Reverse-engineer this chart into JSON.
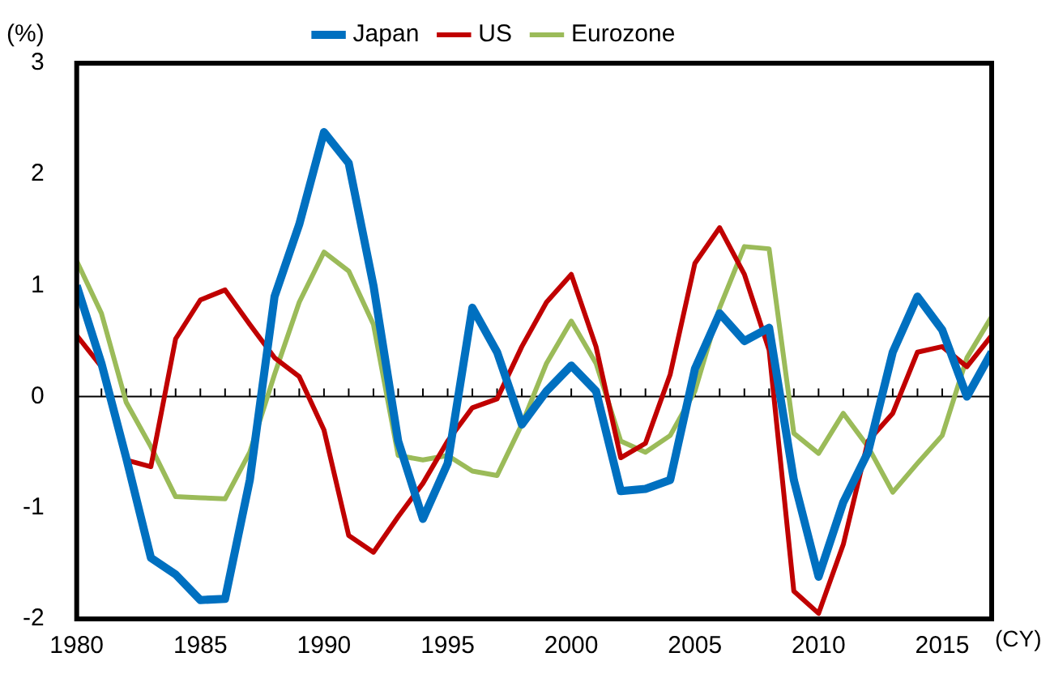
{
  "chart_data": {
    "type": "line",
    "ylabel": "(%)",
    "xlabel": "(CY)",
    "legend": "top",
    "grid": false,
    "marker": "none",
    "line_style": "solid",
    "x": [
      1980,
      1981,
      1982,
      1983,
      1984,
      1985,
      1986,
      1987,
      1988,
      1989,
      1990,
      1991,
      1992,
      1993,
      1994,
      1995,
      1996,
      1997,
      1998,
      1999,
      2000,
      2001,
      2002,
      2003,
      2004,
      2005,
      2006,
      2007,
      2008,
      2009,
      2010,
      2011,
      2012,
      2013,
      2014,
      2015,
      2016,
      2017
    ],
    "series": [
      {
        "name": "Japan",
        "color": "#0070c0",
        "values": [
          1.0,
          0.3,
          -0.55,
          -1.45,
          -1.6,
          -1.83,
          -1.82,
          -0.75,
          0.9,
          1.55,
          2.38,
          2.1,
          1.0,
          -0.4,
          -1.1,
          -0.6,
          0.8,
          0.4,
          -0.25,
          0.05,
          0.28,
          0.05,
          -0.85,
          -0.83,
          -0.75,
          0.25,
          0.75,
          0.5,
          0.62,
          -0.75,
          -1.62,
          -0.95,
          -0.5,
          0.4,
          0.9,
          0.6,
          0.0,
          0.4
        ]
      },
      {
        "name": "US",
        "color": "#c00000",
        "values": [
          0.55,
          0.27,
          -0.57,
          -0.63,
          0.52,
          0.87,
          0.96,
          0.65,
          0.35,
          0.18,
          -0.3,
          -1.25,
          -1.4,
          -1.08,
          -0.78,
          -0.4,
          -0.1,
          -0.02,
          0.45,
          0.85,
          1.1,
          0.45,
          -0.55,
          -0.42,
          0.2,
          1.2,
          1.52,
          1.1,
          0.42,
          -1.75,
          -1.95,
          -1.33,
          -0.4,
          -0.15,
          0.4,
          0.45,
          0.27,
          0.55
        ]
      },
      {
        "name": "Eurozone",
        "color": "#9bbb59",
        "values": [
          1.22,
          0.75,
          -0.05,
          -0.45,
          -0.9,
          -0.91,
          -0.92,
          -0.5,
          0.2,
          0.85,
          1.3,
          1.13,
          0.65,
          -0.53,
          -0.57,
          -0.53,
          -0.67,
          -0.71,
          -0.25,
          0.3,
          0.68,
          0.3,
          -0.4,
          -0.5,
          -0.35,
          0.05,
          0.8,
          1.35,
          1.33,
          -0.33,
          -0.51,
          -0.15,
          -0.45,
          -0.86,
          -0.6,
          -0.35,
          0.35,
          0.72
        ]
      }
    ],
    "xlim": [
      1980,
      2017
    ],
    "xticks": [
      1980,
      {
        "value": 1981,
        "label": null
      },
      {
        "value": 1982,
        "label": null
      },
      {
        "value": 1983,
        "label": null
      },
      {
        "value": 1984,
        "label": null
      },
      1985,
      {
        "value": 1986,
        "label": null
      },
      {
        "value": 1987,
        "label": null
      },
      {
        "value": 1988,
        "label": null
      },
      {
        "value": 1989,
        "label": null
      },
      1990,
      {
        "value": 1991,
        "label": null
      },
      {
        "value": 1992,
        "label": null
      },
      {
        "value": 1993,
        "label": null
      },
      {
        "value": 1994,
        "label": null
      },
      1995,
      {
        "value": 1996,
        "label": null
      },
      {
        "value": 1997,
        "label": null
      },
      {
        "value": 1998,
        "label": null
      },
      {
        "value": 1999,
        "label": null
      },
      2000,
      {
        "value": 2001,
        "label": null
      },
      {
        "value": 2002,
        "label": null
      },
      {
        "value": 2003,
        "label": null
      },
      {
        "value": 2004,
        "label": null
      },
      2005,
      {
        "value": 2006,
        "label": null
      },
      {
        "value": 2007,
        "label": null
      },
      {
        "value": 2008,
        "label": null
      },
      {
        "value": 2009,
        "label": null
      },
      2010,
      {
        "value": 2011,
        "label": null
      },
      {
        "value": 2012,
        "label": null
      },
      {
        "value": 2013,
        "label": null
      },
      {
        "value": 2014,
        "label": null
      },
      2015,
      {
        "value": 2016,
        "label": null
      },
      {
        "value": 2017,
        "label": null
      }
    ],
    "ylim": [
      -2,
      3
    ],
    "yticks": [
      -2,
      -1,
      0,
      1,
      2,
      3
    ],
    "ref_lines": [
      {
        "axis": "y",
        "value": 0,
        "color": "#000000"
      }
    ]
  }
}
